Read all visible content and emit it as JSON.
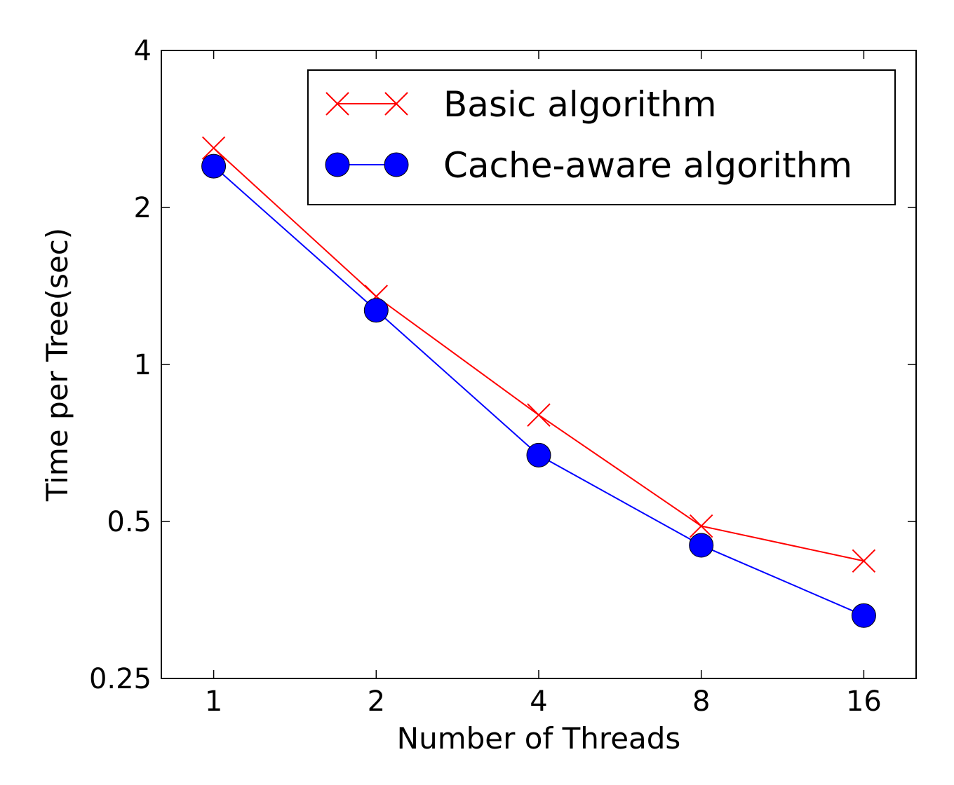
{
  "chart_data": {
    "type": "line",
    "xlabel": "Number of Threads",
    "ylabel": "Time per Tree(sec)",
    "x_scale": "log2",
    "y_scale": "log2",
    "x": [
      1,
      2,
      4,
      8,
      16
    ],
    "x_tick_labels": [
      "1",
      "2",
      "4",
      "8",
      "16"
    ],
    "xlim": [
      0.8,
      20
    ],
    "y_ticks": [
      0.25,
      0.5,
      1,
      2,
      4
    ],
    "y_tick_labels": [
      "0.25",
      "0.5",
      "1",
      "2",
      "4"
    ],
    "ylim": [
      0.25,
      4
    ],
    "grid": false,
    "legend_position": "top-right",
    "series": [
      {
        "name": "Basic algorithm",
        "values": [
          2.6,
          1.35,
          0.8,
          0.49,
          0.42
        ],
        "color": "#ff0000",
        "marker": "x"
      },
      {
        "name": "Cache-aware algorithm",
        "values": [
          2.4,
          1.27,
          0.67,
          0.45,
          0.33
        ],
        "color": "#0000ff",
        "marker": "circle"
      }
    ]
  }
}
